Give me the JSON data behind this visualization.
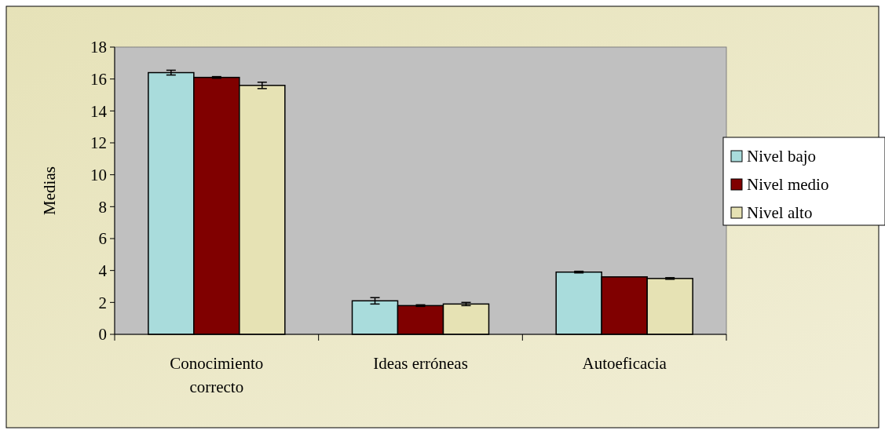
{
  "chart_data": {
    "type": "bar",
    "ylabel": "Medias",
    "categories": [
      "Conocimiento correcto",
      "Ideas erróneas",
      "Autoeficacia"
    ],
    "series": [
      {
        "name": "Nivel bajo",
        "color": "#a9dcdc",
        "values": [
          16.4,
          2.1,
          3.9
        ],
        "errors": [
          0.15,
          0.2,
          0.05
        ]
      },
      {
        "name": "Nivel medio",
        "color": "#800000",
        "values": [
          16.1,
          1.8,
          3.6
        ],
        "errors": [
          0.05,
          0.05,
          null
        ]
      },
      {
        "name": "Nivel alto",
        "color": "#e6e2b4",
        "values": [
          15.6,
          1.9,
          3.5
        ],
        "errors": [
          0.2,
          0.1,
          0.05
        ]
      }
    ],
    "ylim": [
      0,
      18
    ],
    "yticks": [
      0,
      2,
      4,
      6,
      8,
      10,
      12,
      14,
      16,
      18
    ],
    "grid": false,
    "legend": "right"
  }
}
